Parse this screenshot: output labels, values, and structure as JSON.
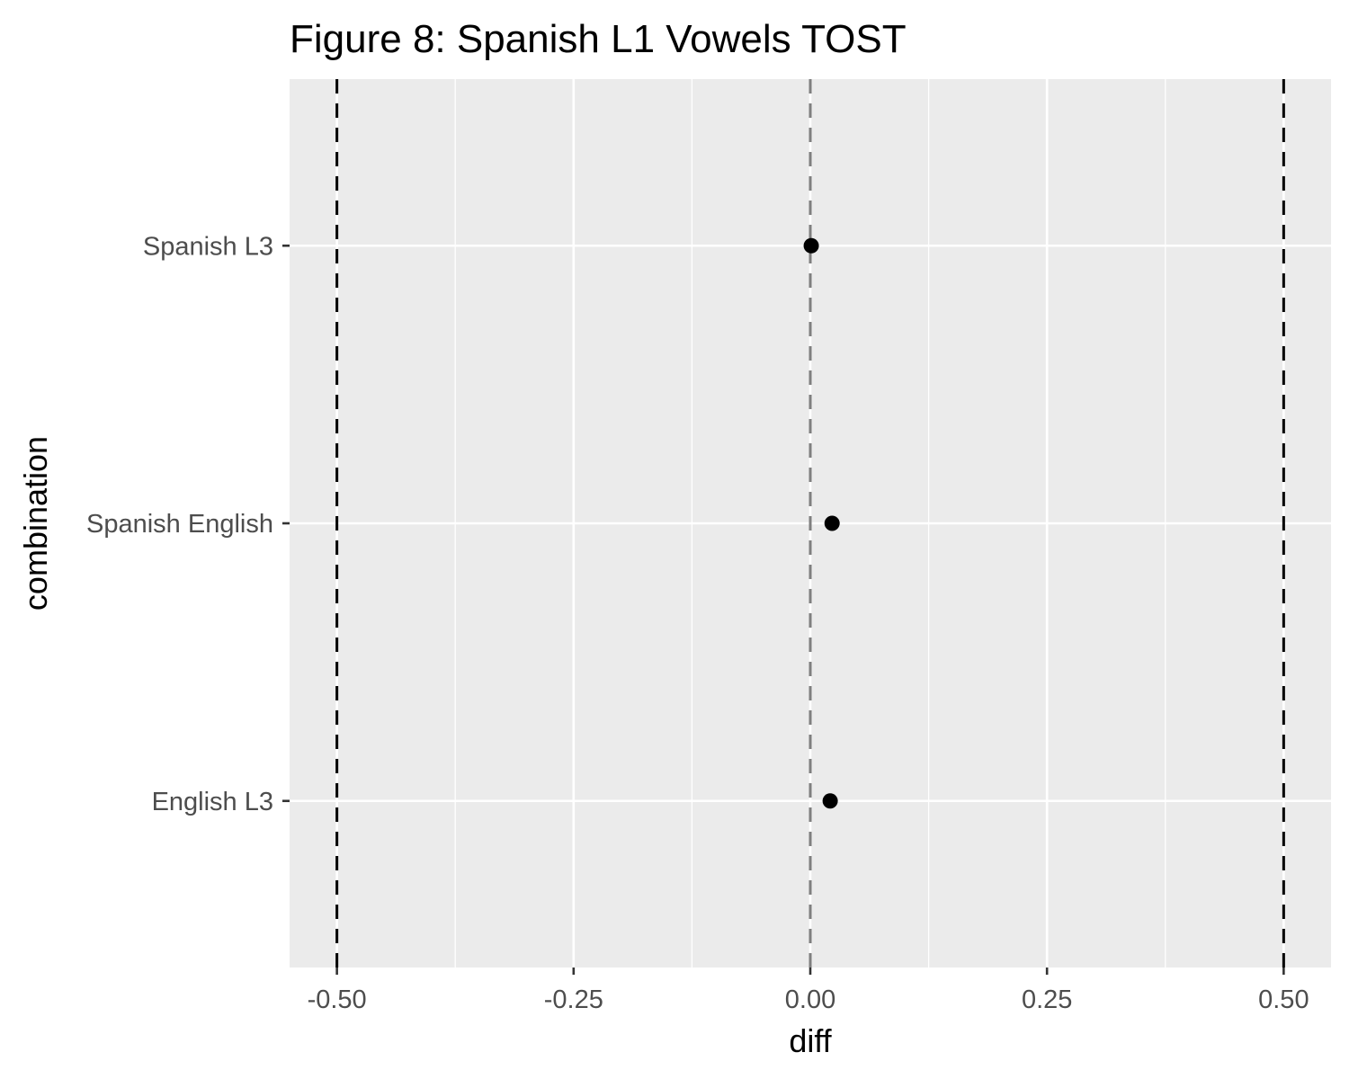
{
  "chart_data": {
    "type": "scatter",
    "title": "Figure 8: Spanish L1 Vowels TOST",
    "xlabel": "diff",
    "ylabel": "combination",
    "xlim": [
      -0.55,
      0.55
    ],
    "x_ticks": [
      -0.5,
      -0.25,
      0.0,
      0.25,
      0.5
    ],
    "x_tick_labels": [
      "-0.50",
      "-0.25",
      "0.00",
      "0.25",
      "0.50"
    ],
    "categories": [
      "Spanish L3",
      "Spanish English",
      "English L3"
    ],
    "points": [
      {
        "category": "Spanish L3",
        "x": 0.001
      },
      {
        "category": "Spanish English",
        "x": 0.023
      },
      {
        "category": "English L3",
        "x": 0.021
      }
    ],
    "reference_lines": [
      {
        "x": -0.5,
        "style": "dashed",
        "color": "#000000"
      },
      {
        "x": 0.0,
        "style": "dashed",
        "color": "#7f7f7f"
      },
      {
        "x": 0.5,
        "style": "dashed",
        "color": "#000000"
      }
    ],
    "grid": true,
    "colors": {
      "panel": "#ebebeb",
      "grid": "#ffffff",
      "point": "#000000",
      "tick_text": "#4d4d4d"
    }
  }
}
